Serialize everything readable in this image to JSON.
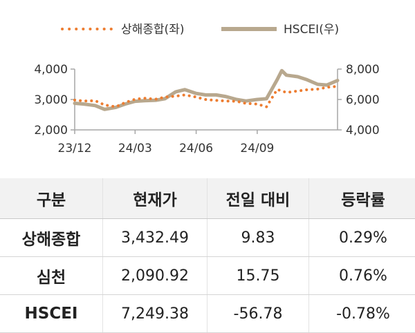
{
  "chart_data": {
    "type": "line",
    "legend": {
      "placement": "top",
      "entries": [
        {
          "name": "상해종합(좌)",
          "color": "#ED7D31",
          "style": "dotted"
        },
        {
          "name": "HSCEI(우)",
          "color": "#B8A88E",
          "style": "solid"
        }
      ]
    },
    "x_tick_labels": [
      "23/12",
      "24/03",
      "24/06",
      "24/09"
    ],
    "x_ticks": [
      "2023-12-01",
      "2024-03-01",
      "2024-06-01",
      "2024-09-01"
    ],
    "xlim": [
      "2023-12-01",
      "2024-12-31"
    ],
    "y_left": {
      "ylim": [
        2000,
        4000
      ],
      "tick_labels": [
        "2,000",
        "3,000",
        "4,000"
      ],
      "ticks": [
        2000,
        3000,
        4000
      ]
    },
    "y_right": {
      "ylim": [
        4000,
        8000
      ],
      "tick_labels": [
        "4,000",
        "6,000",
        "8,000"
      ],
      "ticks": [
        4000,
        6000,
        8000
      ]
    },
    "grid": false,
    "series": [
      {
        "name": "상해종합(좌)",
        "axis": "left",
        "x": [
          "2023-12-01",
          "2023-12-15",
          "2024-01-01",
          "2024-01-15",
          "2024-02-01",
          "2024-02-15",
          "2024-03-01",
          "2024-03-15",
          "2024-04-01",
          "2024-04-15",
          "2024-05-01",
          "2024-05-15",
          "2024-06-01",
          "2024-06-15",
          "2024-07-01",
          "2024-07-15",
          "2024-08-01",
          "2024-08-15",
          "2024-09-01",
          "2024-09-15",
          "2024-10-01",
          "2024-10-15",
          "2024-11-01",
          "2024-11-15",
          "2024-12-01",
          "2024-12-15",
          "2024-12-31"
        ],
        "y": [
          2980,
          2950,
          2960,
          2820,
          2760,
          2900,
          3010,
          3040,
          3010,
          3080,
          3110,
          3150,
          3080,
          3000,
          2970,
          2950,
          2940,
          2870,
          2850,
          2760,
          3330,
          3230,
          3280,
          3320,
          3340,
          3400,
          3432
        ]
      },
      {
        "name": "HSCEI(우)",
        "axis": "right",
        "x": [
          "2023-12-01",
          "2023-12-15",
          "2024-01-01",
          "2024-01-15",
          "2024-02-01",
          "2024-02-15",
          "2024-03-01",
          "2024-03-15",
          "2024-04-01",
          "2024-04-15",
          "2024-05-01",
          "2024-05-15",
          "2024-06-01",
          "2024-06-15",
          "2024-07-01",
          "2024-07-15",
          "2024-08-01",
          "2024-08-15",
          "2024-09-01",
          "2024-09-15",
          "2024-10-01",
          "2024-10-08",
          "2024-10-15",
          "2024-11-01",
          "2024-11-15",
          "2024-12-01",
          "2024-12-15",
          "2024-12-31"
        ],
        "y": [
          5750,
          5700,
          5600,
          5350,
          5480,
          5700,
          5880,
          5920,
          5950,
          6050,
          6500,
          6650,
          6400,
          6300,
          6300,
          6200,
          6000,
          5900,
          6000,
          6050,
          7300,
          7900,
          7600,
          7500,
          7300,
          7000,
          6950,
          7249
        ]
      }
    ]
  },
  "table": {
    "headers": [
      "구분",
      "현재가",
      "전일 대비",
      "등락률"
    ],
    "rows": [
      [
        "상해종합",
        "3,432.49",
        "9.83",
        "0.29%"
      ],
      [
        "심천",
        "2,090.92",
        "15.75",
        "0.76%"
      ],
      [
        "HSCEI",
        "7,249.38",
        "-56.78",
        "-0.78%"
      ]
    ]
  }
}
